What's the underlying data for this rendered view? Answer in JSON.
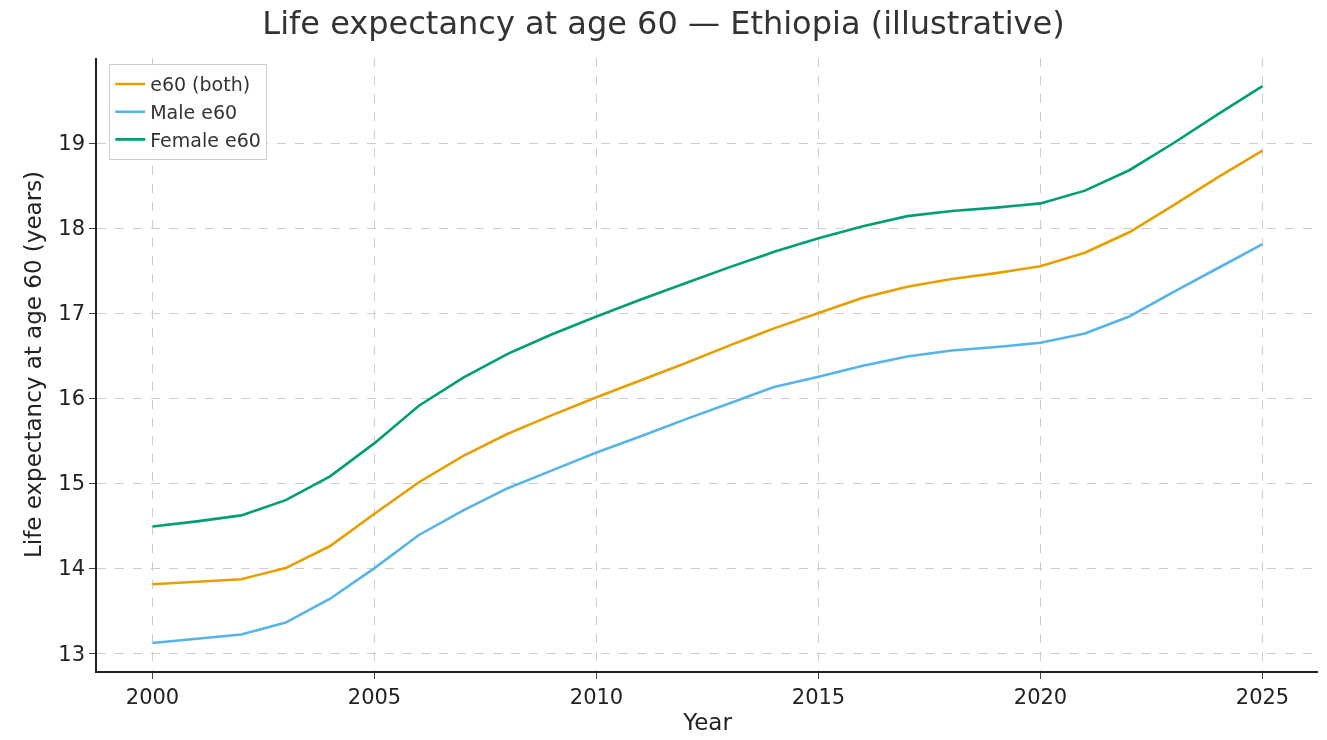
{
  "chart_data": {
    "type": "line",
    "title": "Life expectancy at age 60 — Ethiopia (illustrative)",
    "xlabel": "Year",
    "ylabel": "Life expectancy at age 60 (years)",
    "x": [
      2000,
      2001,
      2002,
      2003,
      2004,
      2005,
      2006,
      2007,
      2008,
      2009,
      2010,
      2011,
      2012,
      2013,
      2014,
      2015,
      2016,
      2017,
      2018,
      2019,
      2020,
      2021,
      2022,
      2023,
      2024,
      2025
    ],
    "series": [
      {
        "name": "e60 (both)",
        "color": "#e69f00",
        "values": [
          13.81,
          13.84,
          13.87,
          14.0,
          14.26,
          14.64,
          15.01,
          15.32,
          15.58,
          15.8,
          16.01,
          16.21,
          16.41,
          16.62,
          16.82,
          17.0,
          17.18,
          17.31,
          17.4,
          17.47,
          17.55,
          17.71,
          17.95,
          18.27,
          18.6,
          18.91
        ]
      },
      {
        "name": "Male e60",
        "color": "#56b4e9",
        "values": [
          13.12,
          13.17,
          13.22,
          13.36,
          13.64,
          14.0,
          14.39,
          14.68,
          14.94,
          15.15,
          15.36,
          15.55,
          15.75,
          15.94,
          16.13,
          16.25,
          16.38,
          16.49,
          16.56,
          16.6,
          16.65,
          16.76,
          16.96,
          17.25,
          17.53,
          17.81
        ]
      },
      {
        "name": "Female e60",
        "color": "#009e73",
        "values": [
          14.49,
          14.55,
          14.62,
          14.8,
          15.08,
          15.47,
          15.91,
          16.24,
          16.52,
          16.75,
          16.96,
          17.16,
          17.35,
          17.54,
          17.72,
          17.88,
          18.02,
          18.14,
          18.2,
          18.24,
          18.29,
          18.44,
          18.68,
          19.0,
          19.34,
          19.67
        ]
      }
    ],
    "xlim": [
      1998.75,
      2026.25
    ],
    "xticks": [
      2000,
      2005,
      2010,
      2015,
      2020,
      2025
    ],
    "ylim": [
      12.79,
      20.0
    ],
    "yticks": [
      13,
      14,
      15,
      16,
      17,
      18,
      19
    ],
    "grid": true,
    "legend": "top left",
    "marker": "none",
    "line_style": "solid"
  }
}
